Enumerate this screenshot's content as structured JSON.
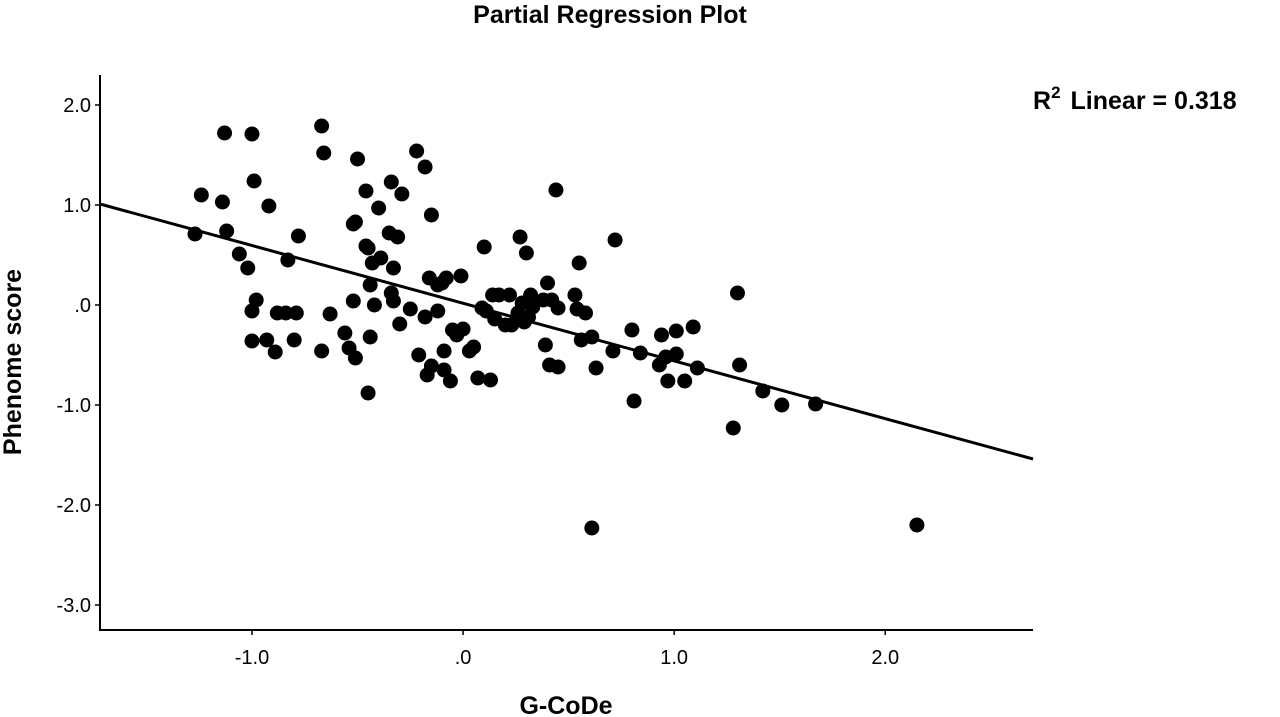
{
  "chart_data": {
    "type": "scatter",
    "title": "Partial Regression Plot",
    "xlabel": "G-CoDe",
    "ylabel": "Phenome score",
    "xlim": [
      -1.72,
      2.7
    ],
    "ylim": [
      -3.25,
      2.3
    ],
    "x_ticks": [
      -1.0,
      0.0,
      1.0,
      2.0
    ],
    "x_tick_labels": [
      "-1.0",
      ".0",
      "1.0",
      "2.0"
    ],
    "y_ticks": [
      2.0,
      1.0,
      0.0,
      -1.0,
      -2.0,
      -3.0
    ],
    "y_tick_labels": [
      "2.0",
      "1.0",
      ".0",
      "-1.0",
      "-2.0",
      "-3.0"
    ],
    "grid": false,
    "annotation": {
      "r_label": "R",
      "r_sup": "2",
      "text": "Linear = 0.318"
    },
    "fit_line": {
      "x": [
        -1.72,
        2.7
      ],
      "y": [
        1.01,
        -1.54
      ]
    },
    "points": [
      [
        -1.24,
        1.1
      ],
      [
        -1.27,
        0.71
      ],
      [
        -1.13,
        1.72
      ],
      [
        -1.14,
        1.03
      ],
      [
        -1.12,
        0.74
      ],
      [
        -1.06,
        0.51
      ],
      [
        -1.02,
        0.37
      ],
      [
        -1.0,
        1.71
      ],
      [
        -0.99,
        1.24
      ],
      [
        -0.92,
        0.99
      ],
      [
        -0.98,
        0.05
      ],
      [
        -1.0,
        -0.06
      ],
      [
        -1.0,
        -0.36
      ],
      [
        -0.93,
        -0.35
      ],
      [
        -0.89,
        -0.47
      ],
      [
        -0.88,
        -0.08
      ],
      [
        -0.84,
        -0.08
      ],
      [
        -0.83,
        0.45
      ],
      [
        -0.79,
        -0.08
      ],
      [
        -0.8,
        -0.35
      ],
      [
        -0.78,
        0.69
      ],
      [
        -0.67,
        1.79
      ],
      [
        -0.66,
        1.52
      ],
      [
        -0.67,
        -0.46
      ],
      [
        -0.63,
        -0.09
      ],
      [
        -0.56,
        -0.28
      ],
      [
        -0.54,
        -0.43
      ],
      [
        -0.52,
        0.81
      ],
      [
        -0.51,
        0.83
      ],
      [
        -0.52,
        0.04
      ],
      [
        -0.51,
        -0.53
      ],
      [
        -0.5,
        1.46
      ],
      [
        -0.46,
        1.14
      ],
      [
        -0.46,
        0.59
      ],
      [
        -0.45,
        0.57
      ],
      [
        -0.43,
        0.42
      ],
      [
        -0.44,
        0.2
      ],
      [
        -0.42,
        0.0
      ],
      [
        -0.44,
        -0.32
      ],
      [
        -0.45,
        -0.88
      ],
      [
        -0.4,
        0.97
      ],
      [
        -0.39,
        0.47
      ],
      [
        -0.35,
        0.72
      ],
      [
        -0.34,
        1.23
      ],
      [
        -0.33,
        0.37
      ],
      [
        -0.34,
        0.12
      ],
      [
        -0.33,
        0.04
      ],
      [
        -0.31,
        0.68
      ],
      [
        -0.3,
        -0.19
      ],
      [
        -0.29,
        1.11
      ],
      [
        -0.25,
        -0.04
      ],
      [
        -0.22,
        1.54
      ],
      [
        -0.21,
        -0.5
      ],
      [
        -0.18,
        1.38
      ],
      [
        -0.18,
        -0.12
      ],
      [
        -0.17,
        -0.7
      ],
      [
        -0.16,
        0.27
      ],
      [
        -0.15,
        0.9
      ],
      [
        -0.15,
        -0.61
      ],
      [
        -0.12,
        0.2
      ],
      [
        -0.12,
        -0.06
      ],
      [
        -0.1,
        0.22
      ],
      [
        -0.08,
        0.27
      ],
      [
        -0.09,
        -0.46
      ],
      [
        -0.09,
        -0.65
      ],
      [
        -0.06,
        -0.76
      ],
      [
        -0.05,
        -0.25
      ],
      [
        -0.03,
        -0.3
      ],
      [
        -0.01,
        0.29
      ],
      [
        0.0,
        -0.24
      ],
      [
        0.03,
        -0.46
      ],
      [
        0.05,
        -0.42
      ],
      [
        0.07,
        -0.73
      ],
      [
        0.09,
        -0.03
      ],
      [
        0.1,
        0.58
      ],
      [
        0.11,
        -0.06
      ],
      [
        0.13,
        -0.75
      ],
      [
        0.14,
        0.1
      ],
      [
        0.15,
        -0.14
      ],
      [
        0.17,
        0.1
      ],
      [
        0.2,
        -0.2
      ],
      [
        0.22,
        0.1
      ],
      [
        0.23,
        -0.2
      ],
      [
        0.26,
        -0.08
      ],
      [
        0.27,
        0.68
      ],
      [
        0.28,
        0.02
      ],
      [
        0.29,
        -0.17
      ],
      [
        0.3,
        0.52
      ],
      [
        0.31,
        -0.12
      ],
      [
        0.32,
        0.1
      ],
      [
        0.33,
        -0.02
      ],
      [
        0.38,
        0.05
      ],
      [
        0.39,
        -0.4
      ],
      [
        0.4,
        0.22
      ],
      [
        0.41,
        -0.6
      ],
      [
        0.42,
        0.05
      ],
      [
        0.44,
        1.15
      ],
      [
        0.45,
        -0.62
      ],
      [
        0.45,
        -0.03
      ],
      [
        0.53,
        0.1
      ],
      [
        0.54,
        -0.04
      ],
      [
        0.55,
        0.42
      ],
      [
        0.56,
        -0.35
      ],
      [
        0.58,
        -0.08
      ],
      [
        0.61,
        -0.32
      ],
      [
        0.61,
        -2.23
      ],
      [
        0.63,
        -0.63
      ],
      [
        0.71,
        -0.46
      ],
      [
        0.72,
        0.65
      ],
      [
        0.8,
        -0.25
      ],
      [
        0.81,
        -0.96
      ],
      [
        0.84,
        -0.48
      ],
      [
        0.93,
        -0.6
      ],
      [
        0.94,
        -0.3
      ],
      [
        0.96,
        -0.52
      ],
      [
        0.97,
        -0.76
      ],
      [
        1.01,
        -0.26
      ],
      [
        1.01,
        -0.49
      ],
      [
        1.05,
        -0.76
      ],
      [
        1.09,
        -0.22
      ],
      [
        1.11,
        -0.63
      ],
      [
        1.28,
        -1.23
      ],
      [
        1.3,
        0.12
      ],
      [
        1.31,
        -0.6
      ],
      [
        1.42,
        -0.86
      ],
      [
        1.51,
        -1.0
      ],
      [
        1.67,
        -0.99
      ],
      [
        2.15,
        -2.2
      ]
    ]
  }
}
